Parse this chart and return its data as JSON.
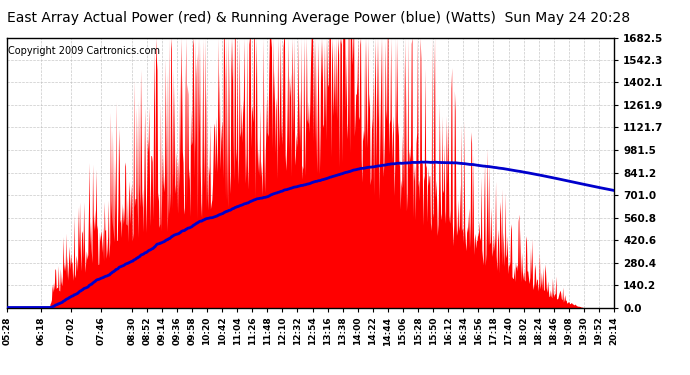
{
  "title": "East Array Actual Power (red) & Running Average Power (blue) (Watts)  Sun May 24 20:28",
  "copyright": "Copyright 2009 Cartronics.com",
  "ylabel_ticks": [
    0.0,
    140.2,
    280.4,
    420.6,
    560.8,
    701.0,
    841.2,
    981.5,
    1121.7,
    1261.9,
    1402.1,
    1542.3,
    1682.5
  ],
  "ymax": 1682.5,
  "ymin": 0.0,
  "background_color": "#ffffff",
  "plot_bg_color": "#ffffff",
  "grid_color": "#bbbbbb",
  "actual_color": "#ff0000",
  "avg_color": "#0000cc",
  "title_fontsize": 10,
  "copyright_fontsize": 7,
  "tick_labels": [
    "05:28",
    "06:18",
    "07:02",
    "07:46",
    "08:30",
    "08:52",
    "09:14",
    "09:36",
    "09:58",
    "10:20",
    "10:42",
    "11:04",
    "11:26",
    "11:48",
    "12:10",
    "12:32",
    "12:54",
    "13:16",
    "13:38",
    "14:00",
    "14:22",
    "14:44",
    "15:06",
    "15:28",
    "15:50",
    "16:12",
    "16:34",
    "16:56",
    "17:18",
    "17:40",
    "18:02",
    "18:24",
    "18:46",
    "19:08",
    "19:30",
    "19:52",
    "20:14"
  ]
}
